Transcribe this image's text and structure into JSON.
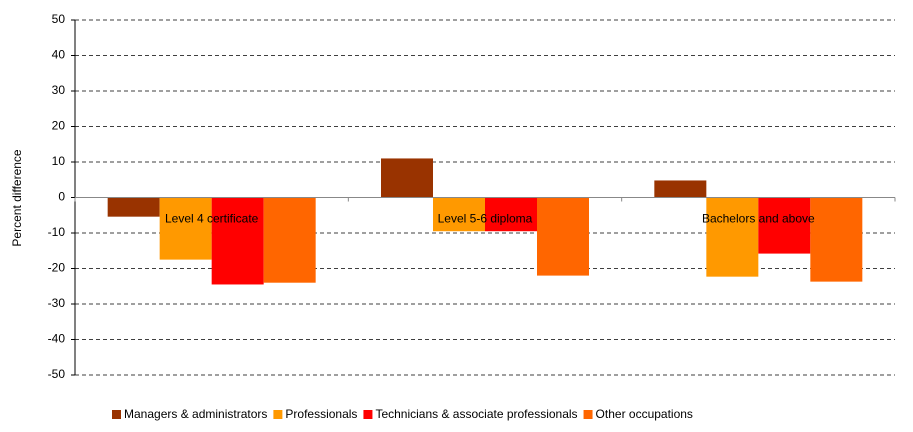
{
  "chart_data": {
    "type": "bar",
    "ylabel": "Percent difference",
    "categories": [
      "Level 4 certificate",
      "Level 5-6 diploma",
      "Bachelors and above"
    ],
    "series": [
      {
        "name": "Managers & administrators",
        "color": "#993300",
        "values": [
          -5.4,
          11,
          4.8
        ]
      },
      {
        "name": "Professionals",
        "color": "#ff9900",
        "values": [
          -17.5,
          -9.5,
          -22.3
        ]
      },
      {
        "name": "Technicians & associate professionals",
        "color": "#ff0000",
        "values": [
          -24.5,
          -9.5,
          -15.8
        ]
      },
      {
        "name": "Other occupations",
        "color": "#ff6600",
        "values": [
          -24,
          -22,
          -23.7
        ]
      }
    ],
    "ylim": [
      -50,
      50
    ],
    "yticks": [
      -50,
      -40,
      -30,
      -20,
      -10,
      0,
      10,
      20,
      30,
      40,
      50
    ],
    "grid": true
  }
}
